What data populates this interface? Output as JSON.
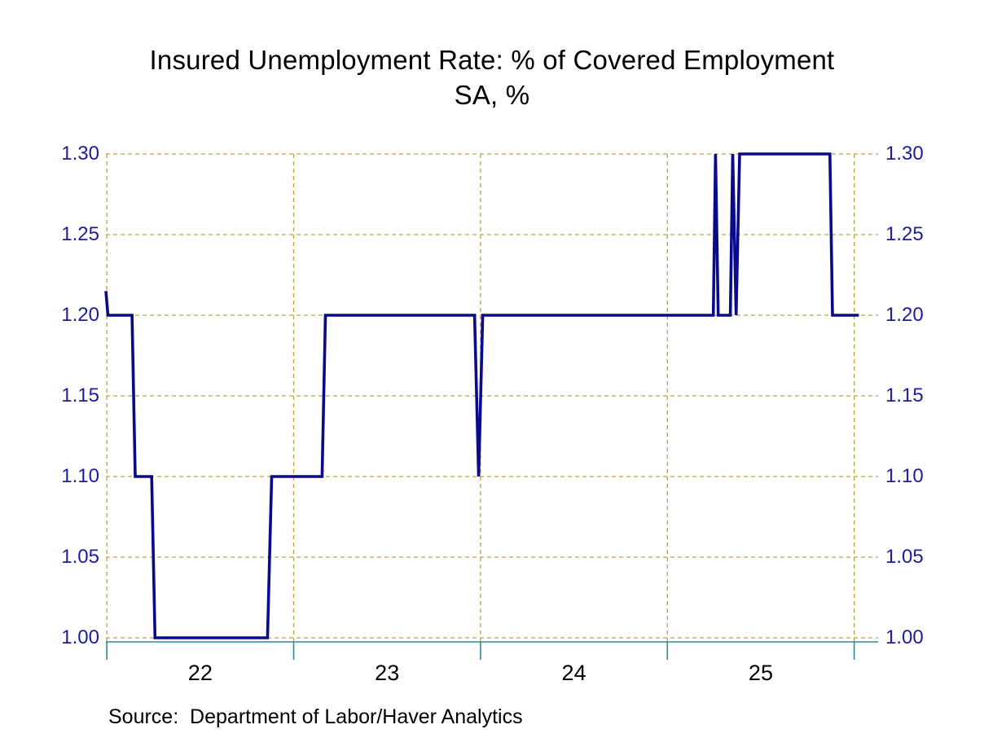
{
  "title": {
    "line1": "Insured Unemployment Rate: % of Covered Employment",
    "line2": "SA, %"
  },
  "source": "Source:  Department of Labor/Haver Analytics",
  "colors": {
    "line": "#0a0a8c",
    "grid": "#c2a044",
    "axis": "#2b8b99",
    "y_tick_label": "#1c1c9e",
    "text": "#000000",
    "background": "#ffffff"
  },
  "chart_data": {
    "type": "line",
    "style": "weekly step line",
    "title": "Insured Unemployment Rate: % of Covered Employment",
    "subtitle": "SA, %",
    "xlabel": "",
    "ylabel": "",
    "grid": "dotted gold, horizontal at each y tick and vertical at each year boundary",
    "legend": "none",
    "x_range": [
      2021.995,
      2026.128
    ],
    "y_range": [
      1.0,
      1.3
    ],
    "y_ticks": {
      "values": [
        1.3,
        1.25,
        1.2,
        1.15,
        1.1,
        1.05,
        1.0
      ],
      "labels": [
        "1.30",
        "1.25",
        "1.20",
        "1.15",
        "1.10",
        "1.05",
        "1.00"
      ],
      "sides": "both left and right"
    },
    "x_ticks": {
      "boundary_values": [
        2022,
        2023,
        2024,
        2025,
        2026
      ],
      "labels": [
        "22",
        "23",
        "24",
        "25"
      ],
      "label_placement": "centered between year boundary ticks"
    },
    "series": [
      {
        "name": "Insured Unemployment Rate (SA, %)",
        "color": "#0a0a8c",
        "points": [
          [
            2021.995,
            1.215
          ],
          [
            2022.006,
            1.2
          ],
          [
            2022.135,
            1.2
          ],
          [
            2022.152,
            1.1
          ],
          [
            2022.24,
            1.1
          ],
          [
            2022.258,
            1.0
          ],
          [
            2022.86,
            1.0
          ],
          [
            2022.882,
            1.1
          ],
          [
            2023.152,
            1.1
          ],
          [
            2023.17,
            1.2
          ],
          [
            2023.968,
            1.2
          ],
          [
            2023.99,
            1.1
          ],
          [
            2024.012,
            1.2
          ],
          [
            2025.246,
            1.2
          ],
          [
            2025.258,
            1.3
          ],
          [
            2025.272,
            1.2
          ],
          [
            2025.337,
            1.2
          ],
          [
            2025.35,
            1.3
          ],
          [
            2025.368,
            1.2
          ],
          [
            2025.387,
            1.3
          ],
          [
            2025.87,
            1.3
          ],
          [
            2025.884,
            1.2
          ],
          [
            2026.025,
            1.2
          ]
        ]
      }
    ]
  }
}
